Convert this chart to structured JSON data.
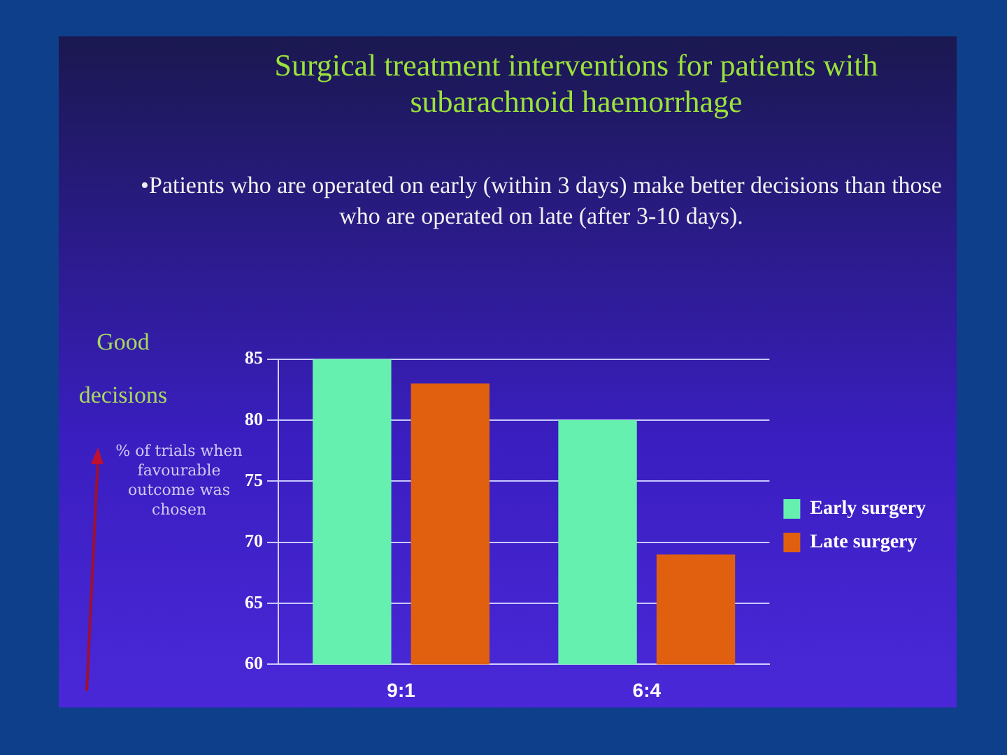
{
  "chart_data": {
    "type": "bar",
    "title": "Surgical treatment interventions for patients with subarachnoid haemorrhage",
    "subtitle": "•Patients who are operated on early (within 3 days) make better decisions than those who are operated on late (after 3-10 days).",
    "ylabel": "% of trials when favourable outcome was chosen",
    "annotations": [
      "Good decisions"
    ],
    "categories": [
      "9:1",
      "6:4"
    ],
    "series": [
      {
        "name": "Early surgery",
        "color": "#66f0b0",
        "values": [
          85,
          80
        ]
      },
      {
        "name": "Late surgery",
        "color": "#e06010",
        "values": [
          83,
          69
        ]
      }
    ],
    "ylim": [
      60,
      85
    ],
    "yticks": [
      60,
      65,
      70,
      75,
      80,
      85
    ],
    "grid": "y",
    "legend": "right"
  }
}
